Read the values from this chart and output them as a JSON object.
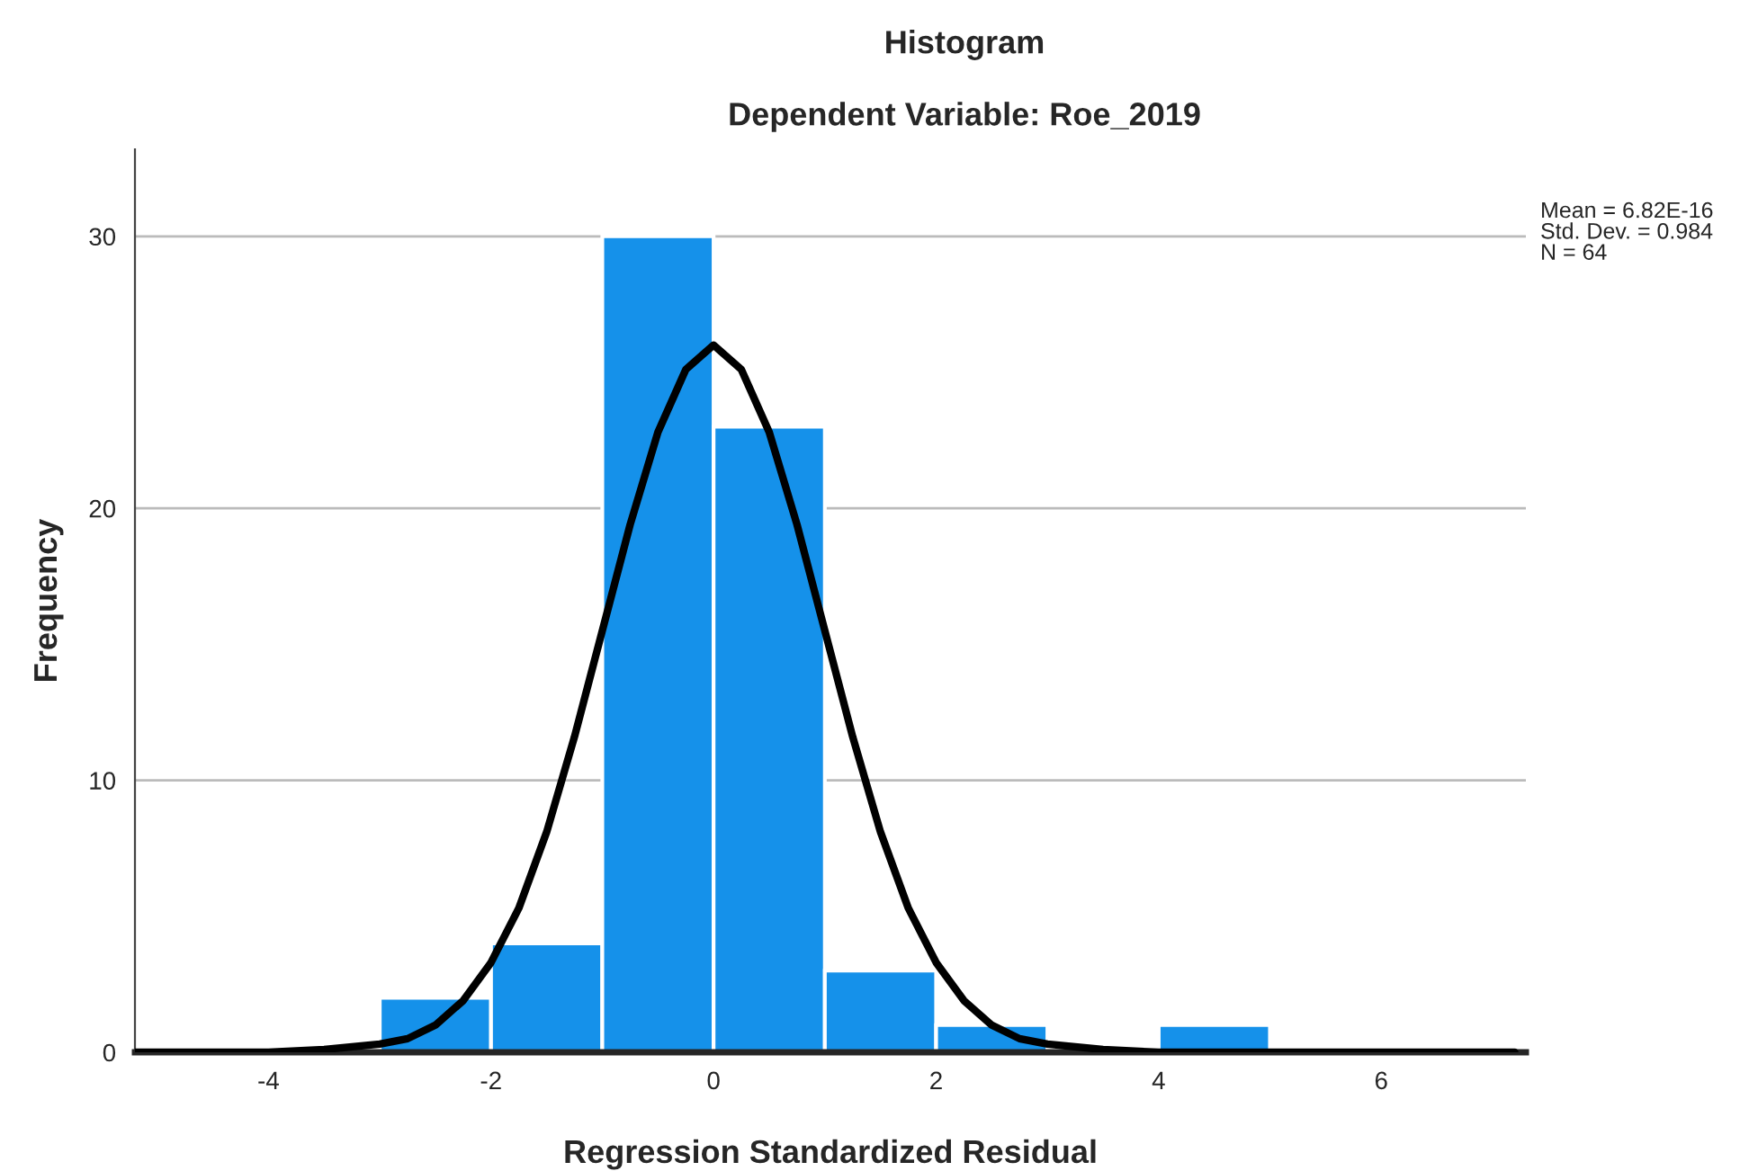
{
  "chart_data": {
    "type": "histogram",
    "title": "Histogram",
    "subtitle": "Dependent Variable: Roe_2019",
    "xlabel": "Regression Standardized Residual",
    "ylabel": "Frequency",
    "bins": [
      -3,
      -2,
      -1,
      0,
      1,
      2,
      3,
      4,
      5
    ],
    "series": [
      {
        "color": "#1591ea",
        "values": [
          2,
          4,
          30,
          23,
          3,
          1,
          0,
          1
        ]
      },
      {
        "type": "line",
        "color": "#000000",
        "x": [
          -5.2,
          -4,
          -3.5,
          -3,
          -2.75,
          -2.5,
          -2.25,
          -2,
          -1.75,
          -1.5,
          -1.25,
          -1,
          -0.75,
          -0.5,
          -0.25,
          0,
          0.25,
          0.5,
          0.75,
          1,
          1.25,
          1.5,
          1.75,
          2,
          2.25,
          2.5,
          2.75,
          3,
          3.5,
          4,
          5,
          7.2
        ],
        "values": [
          0,
          0,
          0.1,
          0.3,
          0.5,
          1,
          1.9,
          3.3,
          5.3,
          8.1,
          11.6,
          15.5,
          19.4,
          22.8,
          25.1,
          26,
          25.1,
          22.8,
          19.4,
          15.5,
          11.6,
          8.1,
          5.3,
          3.3,
          1.9,
          1,
          0.5,
          0.3,
          0.1,
          0,
          0,
          0
        ]
      }
    ],
    "xlim": [
      -5.2,
      7.3
    ],
    "ylim": [
      0,
      33.2
    ],
    "xticks": [
      -4,
      -2,
      0,
      2,
      4,
      6
    ],
    "yticks": [
      0,
      10,
      20,
      30
    ],
    "grid": "y",
    "marker": "none",
    "line_style": "solid",
    "annotations": [
      "Mean = 6.82E-16",
      "Std. Dev. = 0.984",
      "N = 64"
    ]
  }
}
